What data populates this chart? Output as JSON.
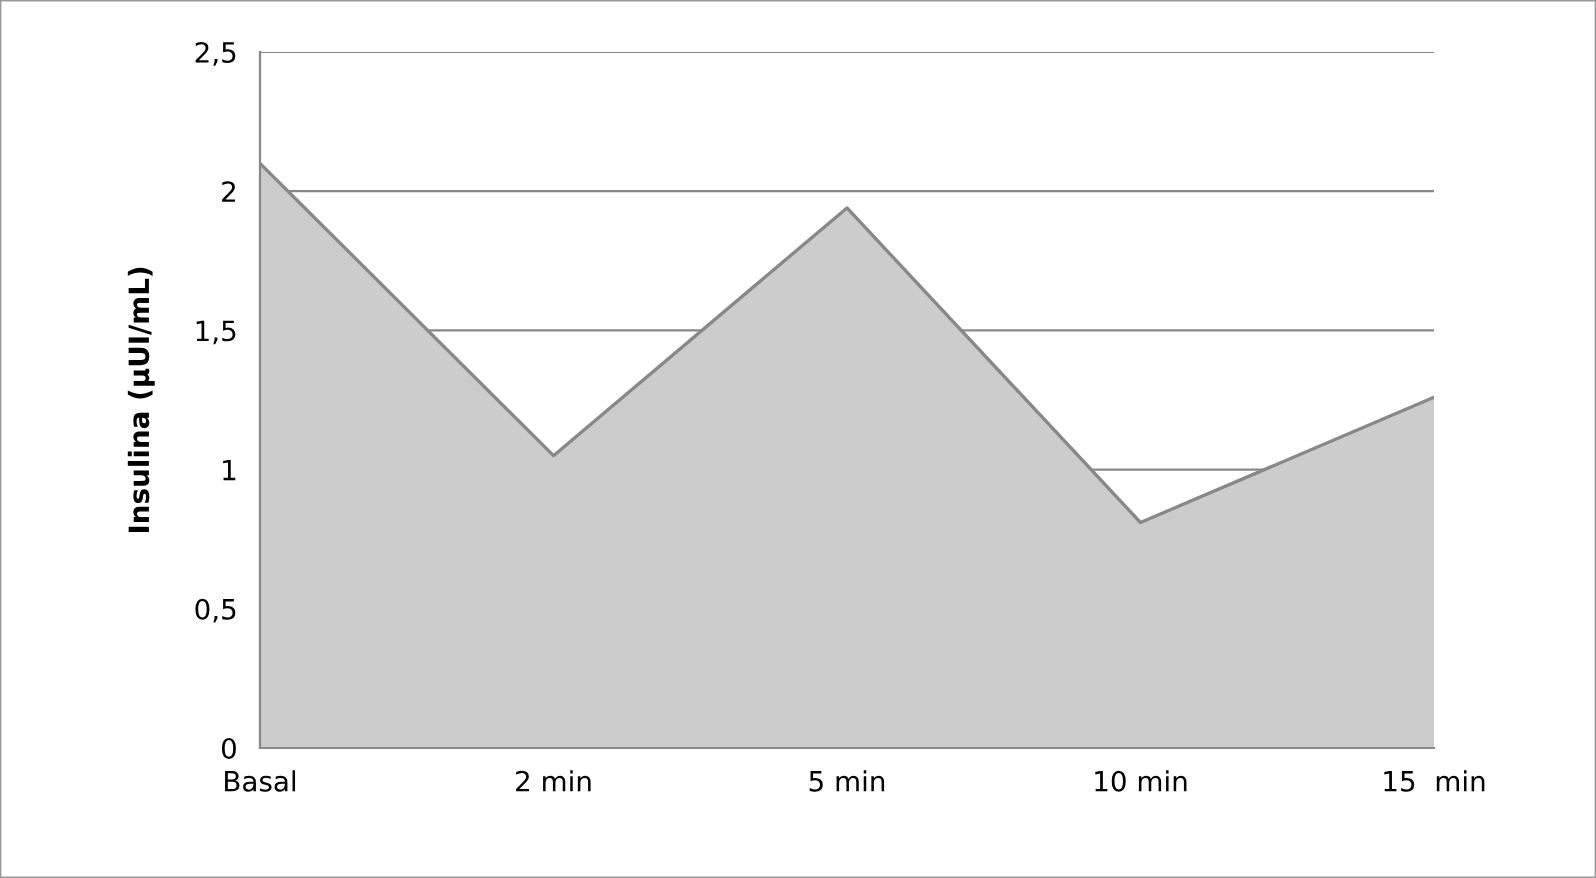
{
  "chart_data": {
    "type": "area",
    "ylabel": "Insulina (µUI/mL)",
    "categories": [
      "Basal",
      "2 min",
      "5 min",
      "10 min",
      "15  min"
    ],
    "values": [
      2.1,
      1.05,
      1.94,
      0.81,
      1.26
    ],
    "color": "#cccccc",
    "ylim": [
      0,
      2.5
    ],
    "yticks": [
      0,
      {
        "value": 0.5,
        "label": "0,5"
      },
      1,
      {
        "value": 1.5,
        "label": "1,5"
      },
      2,
      {
        "value": 2.5,
        "label": "2,5"
      }
    ],
    "grid": "y"
  }
}
